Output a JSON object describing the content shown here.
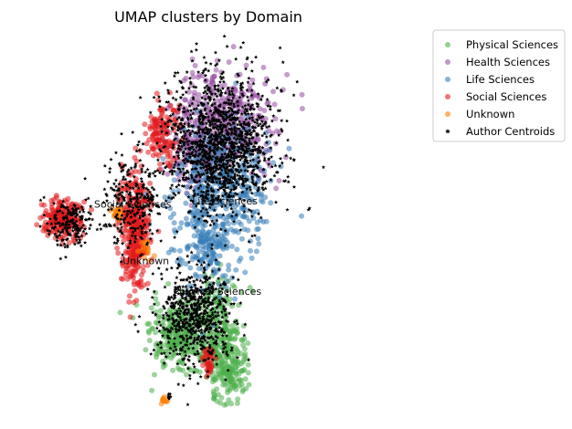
{
  "chart_data": {
    "type": "scatter",
    "title": "UMAP clusters by Domain",
    "xlabel": "",
    "ylabel": "",
    "axes_visible": false,
    "grid": false,
    "legend_position": "top-right",
    "xlim": [
      0,
      600
    ],
    "ylim": [
      0,
      330
    ],
    "series": [
      {
        "name": "Physical Sciences",
        "color": "#4daf4a",
        "clusters": [
          {
            "center": [
              260,
              60
            ],
            "spread": [
              45,
              28
            ],
            "count": 320
          },
          {
            "center": [
              330,
              40
            ],
            "spread": [
              30,
              40
            ],
            "count": 280
          },
          {
            "center": [
              310,
              90
            ],
            "spread": [
              25,
              20
            ],
            "count": 90
          }
        ]
      },
      {
        "name": "Health Sciences",
        "color": "#984ea3",
        "clusters": [
          {
            "center": [
              330,
              255
            ],
            "spread": [
              70,
              40
            ],
            "count": 380
          },
          {
            "center": [
              280,
              220
            ],
            "spread": [
              40,
              30
            ],
            "count": 120
          }
        ]
      },
      {
        "name": "Life Sciences",
        "color": "#377eb8",
        "clusters": [
          {
            "center": [
              320,
              195
            ],
            "spread": [
              70,
              55
            ],
            "count": 420
          },
          {
            "center": [
              300,
              140
            ],
            "spread": [
              40,
              35
            ],
            "count": 160
          }
        ]
      },
      {
        "name": "Social Sciences",
        "color": "#e41a1c",
        "clusters": [
          {
            "center": [
              70,
              165
            ],
            "spread": [
              25,
              15
            ],
            "count": 220
          },
          {
            "center": [
              185,
              155
            ],
            "spread": [
              22,
              45
            ],
            "count": 380
          },
          {
            "center": [
              230,
              240
            ],
            "spread": [
              25,
              25
            ],
            "count": 130
          },
          {
            "center": [
              300,
              40
            ],
            "spread": [
              8,
              12
            ],
            "count": 40
          }
        ]
      },
      {
        "name": "Unknown",
        "color": "#ff7f00",
        "clusters": [
          {
            "center": [
              155,
              170
            ],
            "spread": [
              8,
              5
            ],
            "count": 20
          },
          {
            "center": [
              230,
              5
            ],
            "spread": [
              5,
              4
            ],
            "count": 12
          },
          {
            "center": [
              200,
              140
            ],
            "spread": [
              10,
              10
            ],
            "count": 15
          }
        ]
      },
      {
        "name": "Author Centroids",
        "color": "#000000",
        "marker": "star",
        "clusters": [
          {
            "center": [
              320,
              230
            ],
            "spread": [
              75,
              55
            ],
            "count": 1400
          },
          {
            "center": [
              280,
              80
            ],
            "spread": [
              55,
              40
            ],
            "count": 650
          },
          {
            "center": [
              80,
              160
            ],
            "spread": [
              30,
              18
            ],
            "count": 180
          },
          {
            "center": [
              180,
              180
            ],
            "spread": [
              45,
              40
            ],
            "count": 260
          },
          {
            "center": [
              393,
              400
            ],
            "spread": [
              3,
              3
            ],
            "count": 6
          },
          {
            "center": [
              240,
              8
            ],
            "spread": [
              4,
              4
            ],
            "count": 6
          }
        ]
      }
    ],
    "annotations": [
      {
        "text": "Social Sciences",
        "x": 120,
        "y": 175
      },
      {
        "text": "Unknown",
        "x": 165,
        "y": 125
      },
      {
        "text": "Physical Sciences",
        "x": 245,
        "y": 98
      },
      {
        "text": "Life Sciences",
        "x": 275,
        "y": 178
      }
    ],
    "legend": [
      "Physical Sciences",
      "Health Sciences",
      "Life Sciences",
      "Social Sciences",
      "Unknown",
      "Author Centroids"
    ]
  }
}
